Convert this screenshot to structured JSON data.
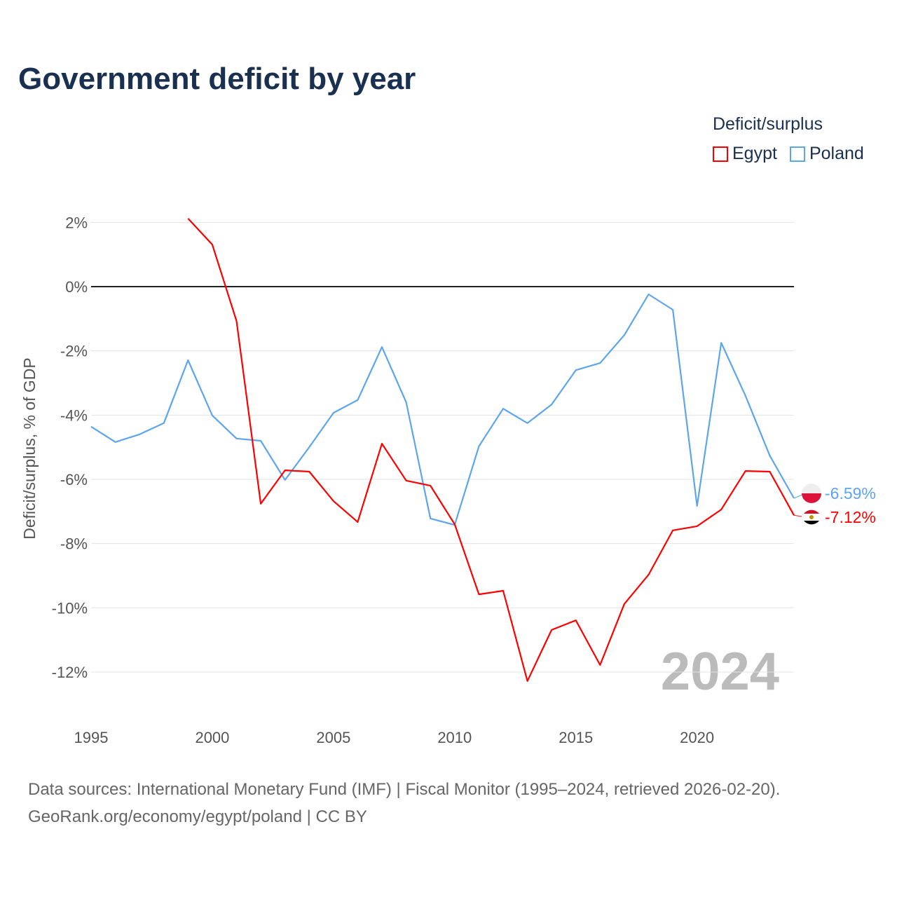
{
  "title": "Government deficit by year",
  "legend": {
    "title": "Deficit/surplus",
    "items": [
      {
        "name": "Egypt",
        "color": "#ff0000"
      },
      {
        "name": "Poland",
        "color": "#5da5ec"
      }
    ]
  },
  "footer": {
    "line1": "Data sources: International Monetary Fund (IMF) | Fiscal Monitor (1995–2024, retrieved 2026-02-20).",
    "line2": "GeoRank.org/economy/egypt/poland | CC BY"
  },
  "chart_data": {
    "type": "line",
    "title": "Government deficit by year",
    "xlabel": "",
    "ylabel": "Deficit/surplus, % of GDP",
    "xlim": [
      1995,
      2024
    ],
    "ylim": [
      -13,
      2.5
    ],
    "x_ticks": [
      "1995",
      "2000",
      "2005",
      "2010",
      "2015",
      "2020"
    ],
    "y_ticks": [
      {
        "v": 2,
        "label": "2%"
      },
      {
        "v": 0,
        "label": "0%"
      },
      {
        "v": -2,
        "label": "-2%"
      },
      {
        "v": -4,
        "label": "-4%"
      },
      {
        "v": -6,
        "label": "-6%"
      },
      {
        "v": -8,
        "label": "-8%"
      },
      {
        "v": -10,
        "label": "-10%"
      },
      {
        "v": -12,
        "label": "-12%"
      }
    ],
    "watermark": "2024",
    "series": [
      {
        "name": "Poland",
        "color": "#5da5ec",
        "end_label": "-6.59%",
        "start_year": 1995,
        "values": [
          -4.36,
          -4.84,
          -4.6,
          -4.25,
          -2.29,
          -4.01,
          -4.73,
          -4.8,
          -6.02,
          -5.0,
          -3.93,
          -3.53,
          -1.88,
          -3.6,
          -7.22,
          -7.42,
          -4.97,
          -3.8,
          -4.25,
          -3.67,
          -2.6,
          -2.38,
          -1.51,
          -0.24,
          -0.72,
          -6.83,
          -1.75,
          -3.4,
          -5.26,
          -6.59
        ]
      },
      {
        "name": "Egypt",
        "color": "#ff0000",
        "end_label": "-7.12%",
        "start_year": 1999,
        "values": [
          2.12,
          1.31,
          -1.07,
          -6.76,
          -5.72,
          -5.76,
          -6.68,
          -7.33,
          -4.89,
          -6.04,
          -6.2,
          -7.4,
          -9.58,
          -9.47,
          -12.28,
          -10.69,
          -10.39,
          -11.78,
          -9.88,
          -8.97,
          -7.59,
          -7.46,
          -6.94,
          -5.74,
          -5.76,
          -7.12
        ]
      }
    ]
  }
}
